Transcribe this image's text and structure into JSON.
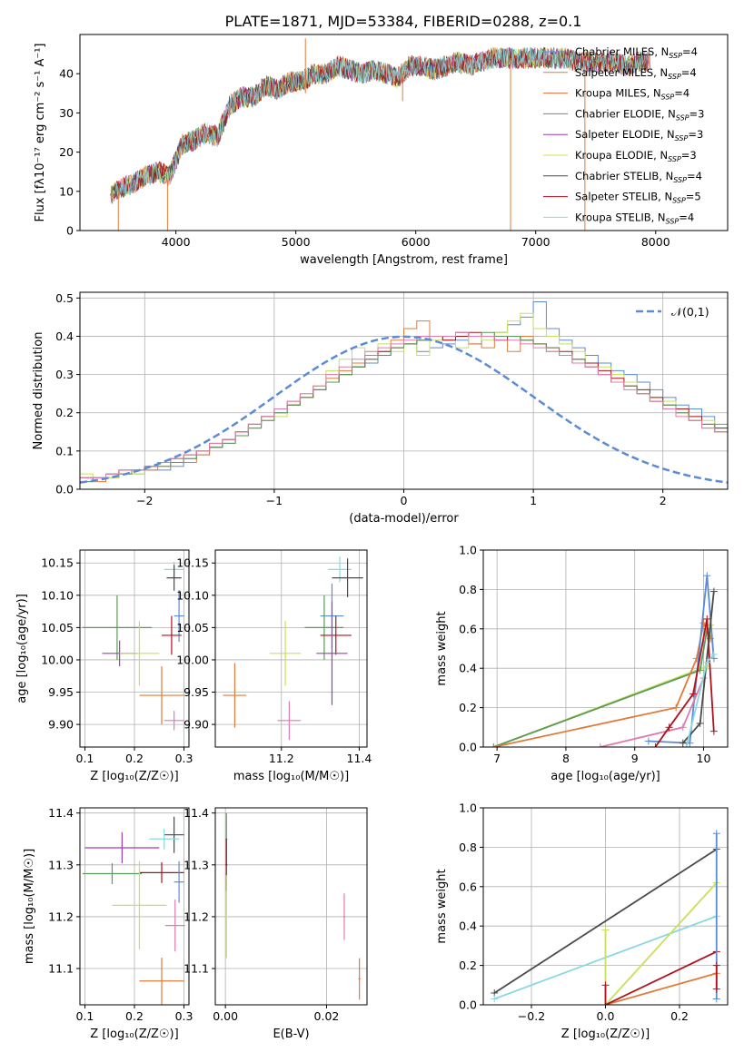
{
  "title": "PLATE=1871, MJD=53384, FIBERID=0288, z=0.1",
  "colors": {
    "chabrier_miles": "#5b8bd6",
    "salpeter_miles": "#e07b39",
    "kroupa_miles": "#e06f3c",
    "chabrier_elodie": "#5a9a5a",
    "salpeter_elodie": "#9b3fb5",
    "kroupa_elodie": "#c8e05a",
    "chabrier_stelib": "#4a4a4a",
    "salpeter_stelib": "#b0121b",
    "kroupa_stelib": "#8ad8e0",
    "pink_extra": "#e07ab0",
    "normal_dashed": "#5b8bd6",
    "grid": "#b0b0b0"
  },
  "chart_data": [
    {
      "type": "line",
      "panel": "spectrum",
      "xlabel": "wavelength [Angstrom, rest frame]",
      "ylabel": "Flux [fλ10⁻¹⁷ erg cm⁻² s⁻¹ A⁻¹]",
      "xlim": [
        3200,
        8600
      ],
      "ylim": [
        0,
        50
      ],
      "xticks": [
        4000,
        5000,
        6000,
        7000,
        8000
      ],
      "yticks": [
        0,
        10,
        20,
        30,
        40
      ],
      "legend_position": "right",
      "series": [
        {
          "name": "Chabrier MILES, N_SSP=4",
          "color_key": "chabrier_miles"
        },
        {
          "name": "Salpeter MILES, N_SSP=4",
          "color_key": "salpeter_miles"
        },
        {
          "name": "Kroupa MILES, N_SSP=4",
          "color_key": "kroupa_miles"
        },
        {
          "name": "Chabrier ELODIE, N_SSP=3",
          "color_key": "chabrier_elodie"
        },
        {
          "name": "Salpeter ELODIE, N_SSP=3",
          "color_key": "salpeter_elodie"
        },
        {
          "name": "Kroupa ELODIE, N_SSP=3",
          "color_key": "kroupa_elodie"
        },
        {
          "name": "Chabrier STELIB, N_SSP=4",
          "color_key": "chabrier_stelib"
        },
        {
          "name": "Salpeter STELIB, N_SSP=5",
          "color_key": "salpeter_stelib"
        },
        {
          "name": "Kroupa STELIB, N_SSP=4",
          "color_key": "kroupa_stelib"
        }
      ],
      "envelope": {
        "x": [
          3450,
          3550,
          3650,
          3750,
          3850,
          3950,
          4050,
          4150,
          4250,
          4350,
          4450,
          4550,
          4650,
          4750,
          4850,
          4950,
          5050,
          5150,
          5250,
          5350,
          5450,
          5550,
          5650,
          5750,
          5850,
          5950,
          6050,
          6150,
          6250,
          6350,
          6450,
          6550,
          6650,
          6750,
          6850,
          6950,
          7050,
          7150,
          7250,
          7350,
          7450,
          7550,
          7650,
          7750,
          7850,
          7950
        ],
        "y": [
          9,
          11,
          12,
          14,
          15,
          14,
          22,
          23,
          25,
          24,
          32,
          34,
          34,
          37,
          36,
          38,
          38,
          40,
          40,
          42,
          41,
          40,
          41,
          40,
          39,
          42,
          42,
          41,
          42,
          43,
          42,
          43,
          44,
          44,
          44,
          44,
          44,
          44,
          44,
          43,
          43,
          43,
          43,
          42,
          43,
          43
        ]
      },
      "annotations": [
        {
          "x": 5080,
          "y_top": 49,
          "y_bottom": 35,
          "note": "spike"
        },
        {
          "x": 5890,
          "y_top": 40,
          "y_bottom": 33,
          "note": "absorption dip"
        },
        {
          "x": 3930,
          "y_top": 13,
          "y_bottom": 0,
          "note": "drop to zero"
        },
        {
          "x": 6790,
          "y_top": 44,
          "y_bottom": 0,
          "note": "drop to zero"
        },
        {
          "x": 7410,
          "y_top": 44,
          "y_bottom": 0,
          "note": "drop to zero"
        },
        {
          "x": 3520,
          "y_top": 10,
          "y_bottom": 0,
          "note": "drop to zero"
        }
      ]
    },
    {
      "type": "histogram",
      "panel": "residuals",
      "xlabel": "(data-model)/error",
      "ylabel": "Normed distribution",
      "xlim": [
        -2.5,
        2.5
      ],
      "ylim": [
        0,
        0.515
      ],
      "xticks": [
        -2,
        -1,
        0,
        1,
        2
      ],
      "yticks": [
        0.0,
        0.1,
        0.2,
        0.3,
        0.4,
        0.5
      ],
      "grid": true,
      "legend_position": "top-right",
      "legend": "𝒩(0,1)",
      "bin_width": 0.1,
      "bin_start": -2.5,
      "series": [
        {
          "color_key": "chabrier_miles",
          "values": [
            0.02,
            0.03,
            0.03,
            0.04,
            0.04,
            0.05,
            0.05,
            0.06,
            0.08,
            0.09,
            0.11,
            0.12,
            0.14,
            0.16,
            0.19,
            0.2,
            0.22,
            0.24,
            0.26,
            0.28,
            0.3,
            0.32,
            0.33,
            0.35,
            0.37,
            0.38,
            0.36,
            0.37,
            0.38,
            0.39,
            0.38,
            0.4,
            0.41,
            0.43,
            0.45,
            0.49,
            0.42,
            0.39,
            0.37,
            0.35,
            0.33,
            0.31,
            0.3,
            0.28,
            0.26,
            0.24,
            0.22,
            0.21,
            0.19,
            0.17
          ]
        },
        {
          "color_key": "salpeter_miles",
          "values": [
            0.03,
            0.02,
            0.04,
            0.04,
            0.05,
            0.05,
            0.06,
            0.07,
            0.07,
            0.09,
            0.12,
            0.13,
            0.15,
            0.17,
            0.18,
            0.21,
            0.23,
            0.24,
            0.27,
            0.29,
            0.31,
            0.33,
            0.35,
            0.36,
            0.39,
            0.42,
            0.44,
            0.4,
            0.39,
            0.41,
            0.38,
            0.37,
            0.4,
            0.36,
            0.4,
            0.38,
            0.36,
            0.35,
            0.33,
            0.32,
            0.3,
            0.28,
            0.27,
            0.25,
            0.23,
            0.21,
            0.2,
            0.18,
            0.16,
            0.15
          ]
        },
        {
          "color_key": "kroupa_elodie",
          "values": [
            0.04,
            0.03,
            0.03,
            0.05,
            0.04,
            0.06,
            0.06,
            0.07,
            0.09,
            0.1,
            0.11,
            0.13,
            0.14,
            0.16,
            0.18,
            0.19,
            0.22,
            0.25,
            0.27,
            0.31,
            0.34,
            0.37,
            0.36,
            0.38,
            0.36,
            0.38,
            0.35,
            0.39,
            0.4,
            0.37,
            0.4,
            0.39,
            0.41,
            0.44,
            0.46,
            0.42,
            0.4,
            0.38,
            0.36,
            0.33,
            0.32,
            0.3,
            0.28,
            0.26,
            0.24,
            0.23,
            0.21,
            0.19,
            0.18,
            0.16
          ]
        },
        {
          "color_key": "salpeter_stelib",
          "values": [
            0.03,
            0.03,
            0.04,
            0.05,
            0.05,
            0.06,
            0.07,
            0.08,
            0.09,
            0.1,
            0.11,
            0.13,
            0.15,
            0.17,
            0.19,
            0.21,
            0.22,
            0.24,
            0.26,
            0.28,
            0.3,
            0.32,
            0.34,
            0.36,
            0.37,
            0.38,
            0.39,
            0.4,
            0.39,
            0.4,
            0.41,
            0.4,
            0.39,
            0.4,
            0.39,
            0.38,
            0.37,
            0.36,
            0.34,
            0.33,
            0.31,
            0.29,
            0.27,
            0.26,
            0.24,
            0.22,
            0.21,
            0.19,
            0.17,
            0.16
          ]
        },
        {
          "color_key": "chabrier_elodie",
          "values": [
            0.02,
            0.03,
            0.04,
            0.04,
            0.05,
            0.06,
            0.06,
            0.07,
            0.08,
            0.1,
            0.11,
            0.12,
            0.14,
            0.16,
            0.18,
            0.2,
            0.22,
            0.24,
            0.26,
            0.28,
            0.3,
            0.32,
            0.34,
            0.35,
            0.37,
            0.38,
            0.39,
            0.4,
            0.4,
            0.41,
            0.4,
            0.41,
            0.4,
            0.4,
            0.39,
            0.38,
            0.37,
            0.35,
            0.34,
            0.32,
            0.3,
            0.28,
            0.27,
            0.25,
            0.23,
            0.22,
            0.2,
            0.18,
            0.17,
            0.15
          ]
        },
        {
          "color_key": "pink_extra",
          "values": [
            0.03,
            0.03,
            0.04,
            0.05,
            0.05,
            0.06,
            0.07,
            0.08,
            0.09,
            0.1,
            0.12,
            0.13,
            0.15,
            0.17,
            0.19,
            0.21,
            0.23,
            0.25,
            0.27,
            0.3,
            0.32,
            0.34,
            0.36,
            0.37,
            0.38,
            0.39,
            0.4,
            0.4,
            0.4,
            0.41,
            0.4,
            0.4,
            0.39,
            0.39,
            0.38,
            0.37,
            0.36,
            0.35,
            0.33,
            0.32,
            0.3,
            0.28,
            0.26,
            0.25,
            0.23,
            0.21,
            0.19,
            0.18,
            0.16,
            0.15
          ]
        }
      ]
    },
    {
      "type": "scatter",
      "panel": "age_vs_Z",
      "xlabel": "Z [log₁₀(Z/Z☉)]",
      "ylabel": "age  [log₁₀(age/yr)]",
      "xlim": [
        0.09,
        0.31
      ],
      "ylim": [
        9.865,
        10.17
      ],
      "xticks": [
        0.1,
        0.2,
        0.3
      ],
      "yticks": [
        9.9,
        9.95,
        10.0,
        10.05,
        10.1,
        10.15
      ],
      "grid": true
    },
    {
      "type": "scatter",
      "panel": "age_vs_mass",
      "xlabel": "mass [log₁₀(M/M☉)]",
      "ylabel": "",
      "xlim": [
        11.03,
        11.42
      ],
      "ylim": [
        9.865,
        10.17
      ],
      "xticks": [
        11.2,
        11.4
      ],
      "yticks": [
        9.9,
        9.95,
        10.0,
        10.05,
        10.1,
        10.15
      ],
      "grid": true
    },
    {
      "type": "line",
      "panel": "weight_vs_age",
      "xlabel": "age  [log₁₀(age/yr)]",
      "ylabel": "mass weight",
      "xlim": [
        6.8,
        10.35
      ],
      "ylim": [
        0.0,
        1.0
      ],
      "xticks": [
        7,
        8,
        9,
        10
      ],
      "yticks": [
        0.0,
        0.2,
        0.4,
        0.6,
        0.8,
        1.0
      ],
      "grid": true
    },
    {
      "type": "scatter",
      "panel": "mass_vs_Z",
      "xlabel": "Z [log₁₀(Z/Z☉)]",
      "ylabel": "mass [log₁₀(M/M☉)]",
      "xlim": [
        0.09,
        0.31
      ],
      "ylim": [
        11.03,
        11.41
      ],
      "xticks": [
        0.1,
        0.2,
        0.3
      ],
      "yticks": [
        11.1,
        11.2,
        11.3,
        11.4
      ],
      "grid": true
    },
    {
      "type": "scatter",
      "panel": "mass_vs_ebv",
      "xlabel": "E(B-V)",
      "ylabel": "",
      "xlim": [
        -0.002,
        0.028
      ],
      "ylim": [
        11.03,
        11.41
      ],
      "xticks": [
        0.0,
        0.02
      ],
      "yticks": [
        11.1,
        11.2,
        11.3,
        11.4
      ],
      "grid": true
    },
    {
      "type": "line",
      "panel": "weight_vs_Z",
      "xlabel": "Z [log₁₀(Z/Z☉)]",
      "ylabel": "mass weight",
      "xlim": [
        -0.33,
        0.33
      ],
      "ylim": [
        0.0,
        1.0
      ],
      "xticks": [
        -0.2,
        0.0,
        0.2
      ],
      "yticks": [
        0.0,
        0.2,
        0.4,
        0.6,
        0.8,
        1.0
      ],
      "grid": true
    }
  ]
}
